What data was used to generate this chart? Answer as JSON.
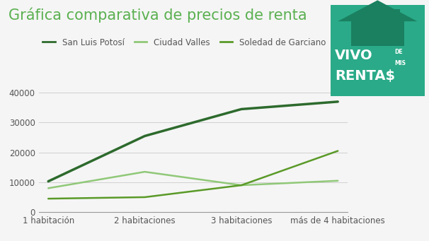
{
  "title": "Gráfica comparativa de precios de renta",
  "categories": [
    "1 habitación",
    "2 habitaciones",
    "3 habitaciones",
    "más de 4 habitaciones"
  ],
  "series": [
    {
      "name": "San Luis Potosí",
      "color": "#2d6a2d",
      "linewidth": 2.5,
      "values": [
        10300,
        25500,
        34500,
        37000
      ]
    },
    {
      "name": "Ciudad Valles",
      "color": "#90c878",
      "linewidth": 1.8,
      "values": [
        8000,
        13500,
        9000,
        10500
      ]
    },
    {
      "name": "Soledad de Garciano",
      "color": "#5a9a28",
      "linewidth": 1.8,
      "values": [
        4500,
        5000,
        9000,
        20500
      ]
    }
  ],
  "ylim": [
    0,
    42000
  ],
  "yticks": [
    0,
    10000,
    20000,
    30000,
    40000
  ],
  "background_color": "#f5f5f5",
  "grid_color": "#d0d0d0",
  "title_color": "#5ab050",
  "title_fontsize": 15,
  "legend_fontsize": 8.5,
  "tick_fontsize": 8.5,
  "logo_bg_color": "#2aaa88",
  "logo_dark_color": "#1a8060",
  "logo_text_color": "#ffffff"
}
